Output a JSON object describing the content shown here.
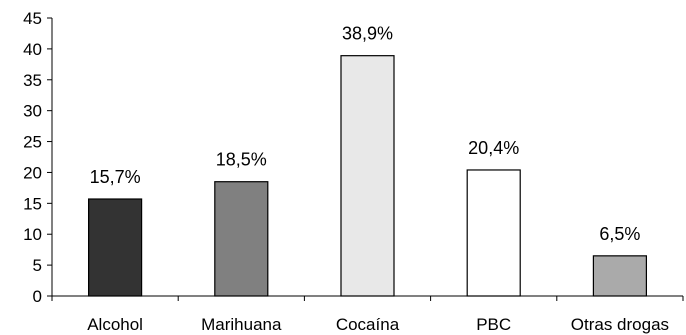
{
  "chart_data": {
    "type": "bar",
    "categories": [
      "Alcohol",
      "Marihuana",
      "Cocaína",
      "PBC",
      "Otras drogas"
    ],
    "values": [
      15.7,
      18.5,
      38.9,
      20.4,
      6.5
    ],
    "data_labels": [
      "15,7%",
      "18,5%",
      "38,9%",
      "20,4%",
      "6,5%"
    ],
    "bar_colors": [
      "#333333",
      "#808080",
      "#e8e8e8",
      "#ffffff",
      "#aaaaaa"
    ],
    "ylim": [
      0,
      45
    ],
    "yticks": [
      0,
      5,
      10,
      15,
      20,
      25,
      30,
      35,
      40,
      45
    ],
    "title": "",
    "xlabel": "",
    "ylabel": "",
    "grid": false,
    "legend": "none"
  }
}
